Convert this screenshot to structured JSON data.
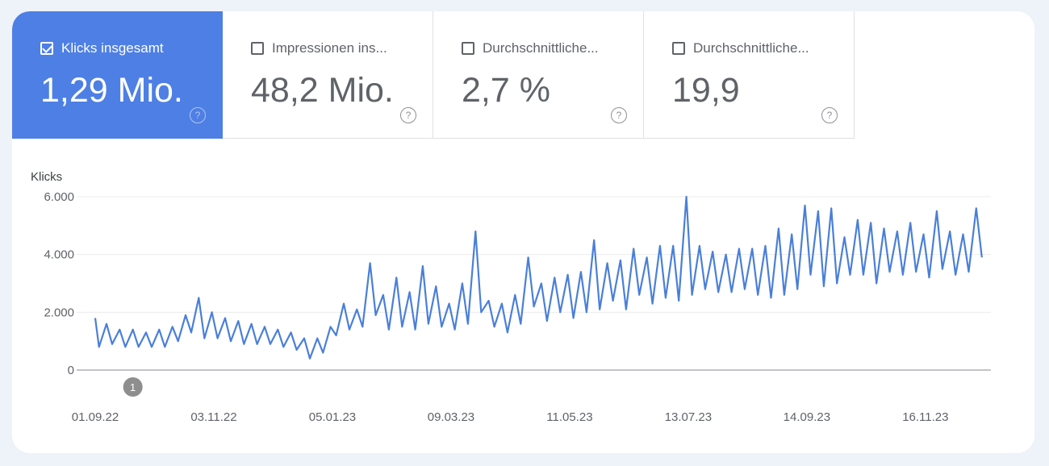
{
  "tabs": [
    {
      "label": "Klicks insgesamt",
      "value": "1,29 Mio.",
      "checked": true
    },
    {
      "label": "Impressionen ins...",
      "value": "48,2 Mio.",
      "checked": false
    },
    {
      "label": "Durchschnittliche...",
      "value": "2,7 %",
      "checked": false
    },
    {
      "label": "Durchschnittliche...",
      "value": "19,9",
      "checked": false
    }
  ],
  "help_icon": "?",
  "colors": {
    "accent": "#4e7fe4",
    "line": "#4a7fd9"
  },
  "chart_data": {
    "type": "line",
    "ylabel": "Klicks",
    "ylim": [
      0,
      6000
    ],
    "yticks": [
      0,
      2000,
      4000,
      6000
    ],
    "ytick_labels": [
      "0",
      "2.000",
      "4.000",
      "6.000"
    ],
    "xticks": [
      "2022-09-01",
      "2022-11-03",
      "2023-01-05",
      "2023-03-09",
      "2023-05-11",
      "2023-07-13",
      "2023-09-14",
      "2023-11-16"
    ],
    "xtick_labels": [
      "01.09.22",
      "03.11.22",
      "05.01.23",
      "09.03.23",
      "11.05.23",
      "13.07.23",
      "14.09.23",
      "16.11.23"
    ],
    "grid": true,
    "annotations": [
      {
        "date": "2022-09-21",
        "label": "1"
      }
    ],
    "series": [
      {
        "points": [
          [
            "2022-09-01",
            1800
          ],
          [
            "2022-09-03",
            800
          ],
          [
            "2022-09-07",
            1600
          ],
          [
            "2022-09-10",
            900
          ],
          [
            "2022-09-14",
            1400
          ],
          [
            "2022-09-17",
            800
          ],
          [
            "2022-09-21",
            1400
          ],
          [
            "2022-09-24",
            800
          ],
          [
            "2022-09-28",
            1300
          ],
          [
            "2022-10-01",
            800
          ],
          [
            "2022-10-05",
            1400
          ],
          [
            "2022-10-08",
            800
          ],
          [
            "2022-10-12",
            1500
          ],
          [
            "2022-10-15",
            1000
          ],
          [
            "2022-10-19",
            1900
          ],
          [
            "2022-10-22",
            1300
          ],
          [
            "2022-10-26",
            2500
          ],
          [
            "2022-10-29",
            1100
          ],
          [
            "2022-11-02",
            2000
          ],
          [
            "2022-11-05",
            1100
          ],
          [
            "2022-11-09",
            1800
          ],
          [
            "2022-11-12",
            1000
          ],
          [
            "2022-11-16",
            1700
          ],
          [
            "2022-11-19",
            900
          ],
          [
            "2022-11-23",
            1600
          ],
          [
            "2022-11-26",
            900
          ],
          [
            "2022-11-30",
            1500
          ],
          [
            "2022-12-03",
            900
          ],
          [
            "2022-12-07",
            1400
          ],
          [
            "2022-12-10",
            800
          ],
          [
            "2022-12-14",
            1300
          ],
          [
            "2022-12-17",
            700
          ],
          [
            "2022-12-21",
            1100
          ],
          [
            "2022-12-24",
            400
          ],
          [
            "2022-12-28",
            1100
          ],
          [
            "2022-12-31",
            600
          ],
          [
            "2023-01-04",
            1500
          ],
          [
            "2023-01-07",
            1200
          ],
          [
            "2023-01-11",
            2300
          ],
          [
            "2023-01-14",
            1400
          ],
          [
            "2023-01-18",
            2100
          ],
          [
            "2023-01-21",
            1500
          ],
          [
            "2023-01-25",
            3700
          ],
          [
            "2023-01-28",
            1900
          ],
          [
            "2023-02-01",
            2600
          ],
          [
            "2023-02-04",
            1400
          ],
          [
            "2023-02-08",
            3200
          ],
          [
            "2023-02-11",
            1500
          ],
          [
            "2023-02-15",
            2700
          ],
          [
            "2023-02-18",
            1400
          ],
          [
            "2023-02-22",
            3600
          ],
          [
            "2023-02-25",
            1600
          ],
          [
            "2023-03-01",
            2900
          ],
          [
            "2023-03-04",
            1500
          ],
          [
            "2023-03-08",
            2300
          ],
          [
            "2023-03-11",
            1400
          ],
          [
            "2023-03-15",
            3000
          ],
          [
            "2023-03-18",
            1600
          ],
          [
            "2023-03-22",
            4800
          ],
          [
            "2023-03-25",
            2000
          ],
          [
            "2023-03-29",
            2400
          ],
          [
            "2023-04-01",
            1500
          ],
          [
            "2023-04-05",
            2300
          ],
          [
            "2023-04-08",
            1300
          ],
          [
            "2023-04-12",
            2600
          ],
          [
            "2023-04-15",
            1600
          ],
          [
            "2023-04-19",
            3900
          ],
          [
            "2023-04-22",
            2200
          ],
          [
            "2023-04-26",
            3000
          ],
          [
            "2023-04-29",
            1700
          ],
          [
            "2023-05-03",
            3200
          ],
          [
            "2023-05-06",
            2000
          ],
          [
            "2023-05-10",
            3300
          ],
          [
            "2023-05-13",
            1800
          ],
          [
            "2023-05-17",
            3400
          ],
          [
            "2023-05-20",
            2000
          ],
          [
            "2023-05-24",
            4500
          ],
          [
            "2023-05-27",
            2100
          ],
          [
            "2023-05-31",
            3700
          ],
          [
            "2023-06-03",
            2400
          ],
          [
            "2023-06-07",
            3800
          ],
          [
            "2023-06-10",
            2100
          ],
          [
            "2023-06-14",
            4200
          ],
          [
            "2023-06-17",
            2600
          ],
          [
            "2023-06-21",
            3900
          ],
          [
            "2023-06-24",
            2300
          ],
          [
            "2023-06-28",
            4300
          ],
          [
            "2023-07-01",
            2500
          ],
          [
            "2023-07-05",
            4300
          ],
          [
            "2023-07-08",
            2400
          ],
          [
            "2023-07-12",
            6000
          ],
          [
            "2023-07-15",
            2600
          ],
          [
            "2023-07-19",
            4300
          ],
          [
            "2023-07-22",
            2800
          ],
          [
            "2023-07-26",
            4100
          ],
          [
            "2023-07-29",
            2700
          ],
          [
            "2023-08-02",
            4000
          ],
          [
            "2023-08-05",
            2700
          ],
          [
            "2023-08-09",
            4200
          ],
          [
            "2023-08-12",
            2800
          ],
          [
            "2023-08-16",
            4200
          ],
          [
            "2023-08-19",
            2600
          ],
          [
            "2023-08-23",
            4300
          ],
          [
            "2023-08-26",
            2500
          ],
          [
            "2023-08-30",
            4900
          ],
          [
            "2023-09-02",
            2600
          ],
          [
            "2023-09-06",
            4700
          ],
          [
            "2023-09-09",
            2800
          ],
          [
            "2023-09-13",
            5700
          ],
          [
            "2023-09-16",
            3300
          ],
          [
            "2023-09-20",
            5500
          ],
          [
            "2023-09-23",
            2900
          ],
          [
            "2023-09-27",
            5600
          ],
          [
            "2023-09-30",
            3000
          ],
          [
            "2023-10-04",
            4600
          ],
          [
            "2023-10-07",
            3300
          ],
          [
            "2023-10-11",
            5200
          ],
          [
            "2023-10-14",
            3300
          ],
          [
            "2023-10-18",
            5100
          ],
          [
            "2023-10-21",
            3000
          ],
          [
            "2023-10-25",
            4900
          ],
          [
            "2023-10-28",
            3400
          ],
          [
            "2023-11-01",
            4800
          ],
          [
            "2023-11-04",
            3300
          ],
          [
            "2023-11-08",
            5100
          ],
          [
            "2023-11-11",
            3400
          ],
          [
            "2023-11-15",
            4700
          ],
          [
            "2023-11-18",
            3200
          ],
          [
            "2023-11-22",
            5500
          ],
          [
            "2023-11-25",
            3500
          ],
          [
            "2023-11-29",
            4800
          ],
          [
            "2023-12-02",
            3300
          ],
          [
            "2023-12-06",
            4700
          ],
          [
            "2023-12-09",
            3400
          ],
          [
            "2023-12-13",
            5600
          ],
          [
            "2023-12-16",
            3900
          ]
        ]
      }
    ]
  }
}
